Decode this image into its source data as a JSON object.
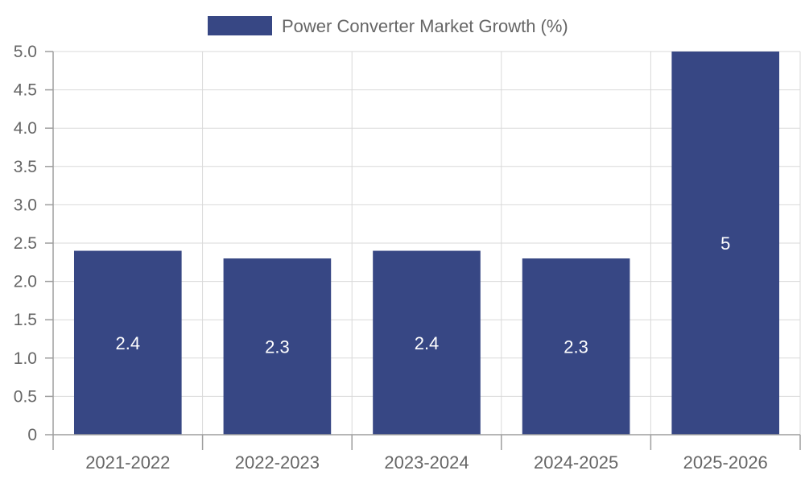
{
  "chart_data": {
    "type": "bar",
    "title": "",
    "xlabel": "",
    "ylabel": "",
    "categories": [
      "2021-2022",
      "2022-2023",
      "2023-2024",
      "2024-2025",
      "2025-2026"
    ],
    "series": [
      {
        "name": "Power Converter Market Growth (%)",
        "values": [
          2.4,
          2.3,
          2.4,
          2.3,
          5
        ],
        "color": "#374784",
        "data_labels": [
          "2.4",
          "2.3",
          "2.4",
          "2.3",
          "5"
        ]
      }
    ],
    "ylim": [
      0,
      5
    ],
    "y_ticks": [
      0,
      0.5,
      1,
      1.5,
      2,
      2.5,
      3,
      3.5,
      4,
      4.5,
      5
    ],
    "y_tick_labels": [
      "0",
      "0.5",
      "1.0",
      "1.5",
      "2.0",
      "2.5",
      "3.0",
      "3.5",
      "4.0",
      "4.5",
      "5.0"
    ],
    "grid": true,
    "legend_position": "top-center"
  }
}
